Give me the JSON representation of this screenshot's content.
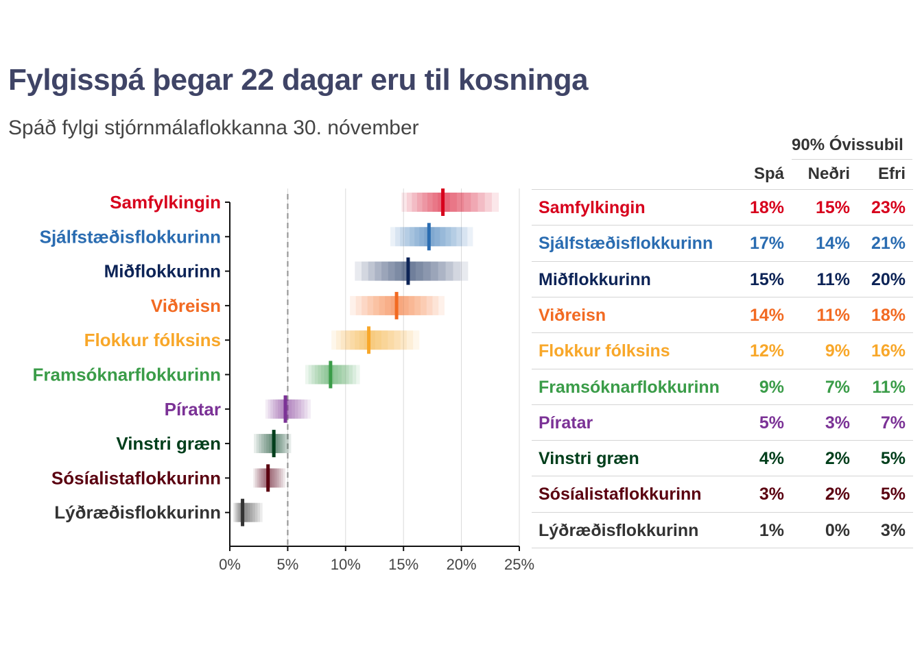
{
  "header": {
    "title": "Fylgisspá þegar 22 dagar eru til kosninga",
    "subtitle": "Spáð fylgi stjórnmálaflokkanna 30. nóvember"
  },
  "table": {
    "group_header": "90% Óvissubil",
    "col_forecast": "Spá",
    "col_lower": "Neðri",
    "col_upper": "Efri",
    "rows": [
      {
        "party": "Samfylkingin",
        "forecast": "18%",
        "lower": "15%",
        "upper": "23%"
      },
      {
        "party": "Sjálfstæðisflokkurinn",
        "forecast": "17%",
        "lower": "14%",
        "upper": "21%"
      },
      {
        "party": "Miðflokkurinn",
        "forecast": "15%",
        "lower": "11%",
        "upper": "20%"
      },
      {
        "party": "Viðreisn",
        "forecast": "14%",
        "lower": "11%",
        "upper": "18%"
      },
      {
        "party": "Flokkur fólksins",
        "forecast": "12%",
        "lower": "9%",
        "upper": "16%"
      },
      {
        "party": "Framsóknarflokkurinn",
        "forecast": "9%",
        "lower": "7%",
        "upper": "11%"
      },
      {
        "party": "Píratar",
        "forecast": "5%",
        "lower": "3%",
        "upper": "7%"
      },
      {
        "party": "Vinstri græn",
        "forecast": "4%",
        "lower": "2%",
        "upper": "5%"
      },
      {
        "party": "Sósíalistaflokkurinn",
        "forecast": "3%",
        "lower": "2%",
        "upper": "5%"
      },
      {
        "party": "Lýðræðisflokkurinn",
        "forecast": "1%",
        "lower": "0%",
        "upper": "3%"
      }
    ]
  },
  "chart_data": {
    "type": "scatter",
    "categories": [
      "Samfylkingin",
      "Sjálfstæðisflokkurinn",
      "Miðflokkurinn",
      "Viðreisn",
      "Flokkur fólksins",
      "Framsóknarflokkurinn",
      "Píratar",
      "Vinstri græn",
      "Sósíalistaflokkurinn",
      "Lýðræðisflokkurinn"
    ],
    "median": [
      18.4,
      17.2,
      15.4,
      14.4,
      12.0,
      8.7,
      4.8,
      3.8,
      3.3,
      1.1
    ],
    "interval_90": [
      [
        15.3,
        22.6
      ],
      [
        14.3,
        20.5
      ],
      [
        11.4,
        19.9
      ],
      [
        10.9,
        18.0
      ],
      [
        9.2,
        15.8
      ],
      [
        6.8,
        10.9
      ],
      [
        3.3,
        6.7
      ],
      [
        2.3,
        5.1
      ],
      [
        2.2,
        4.6
      ],
      [
        0.4,
        2.6
      ]
    ],
    "colors": [
      "#d7001c",
      "#2a6cb1",
      "#0c2356",
      "#f26a22",
      "#f8a729",
      "#3a9c48",
      "#7b3296",
      "#003e1b",
      "#5a0010",
      "#333333"
    ],
    "xlim": [
      0,
      25
    ],
    "x_ticks": [
      0,
      5,
      10,
      15,
      20,
      25
    ],
    "x_tick_labels": [
      "0%",
      "5%",
      "10%",
      "15%",
      "20%",
      "25%"
    ],
    "reference_line": 5,
    "grid": true
  }
}
